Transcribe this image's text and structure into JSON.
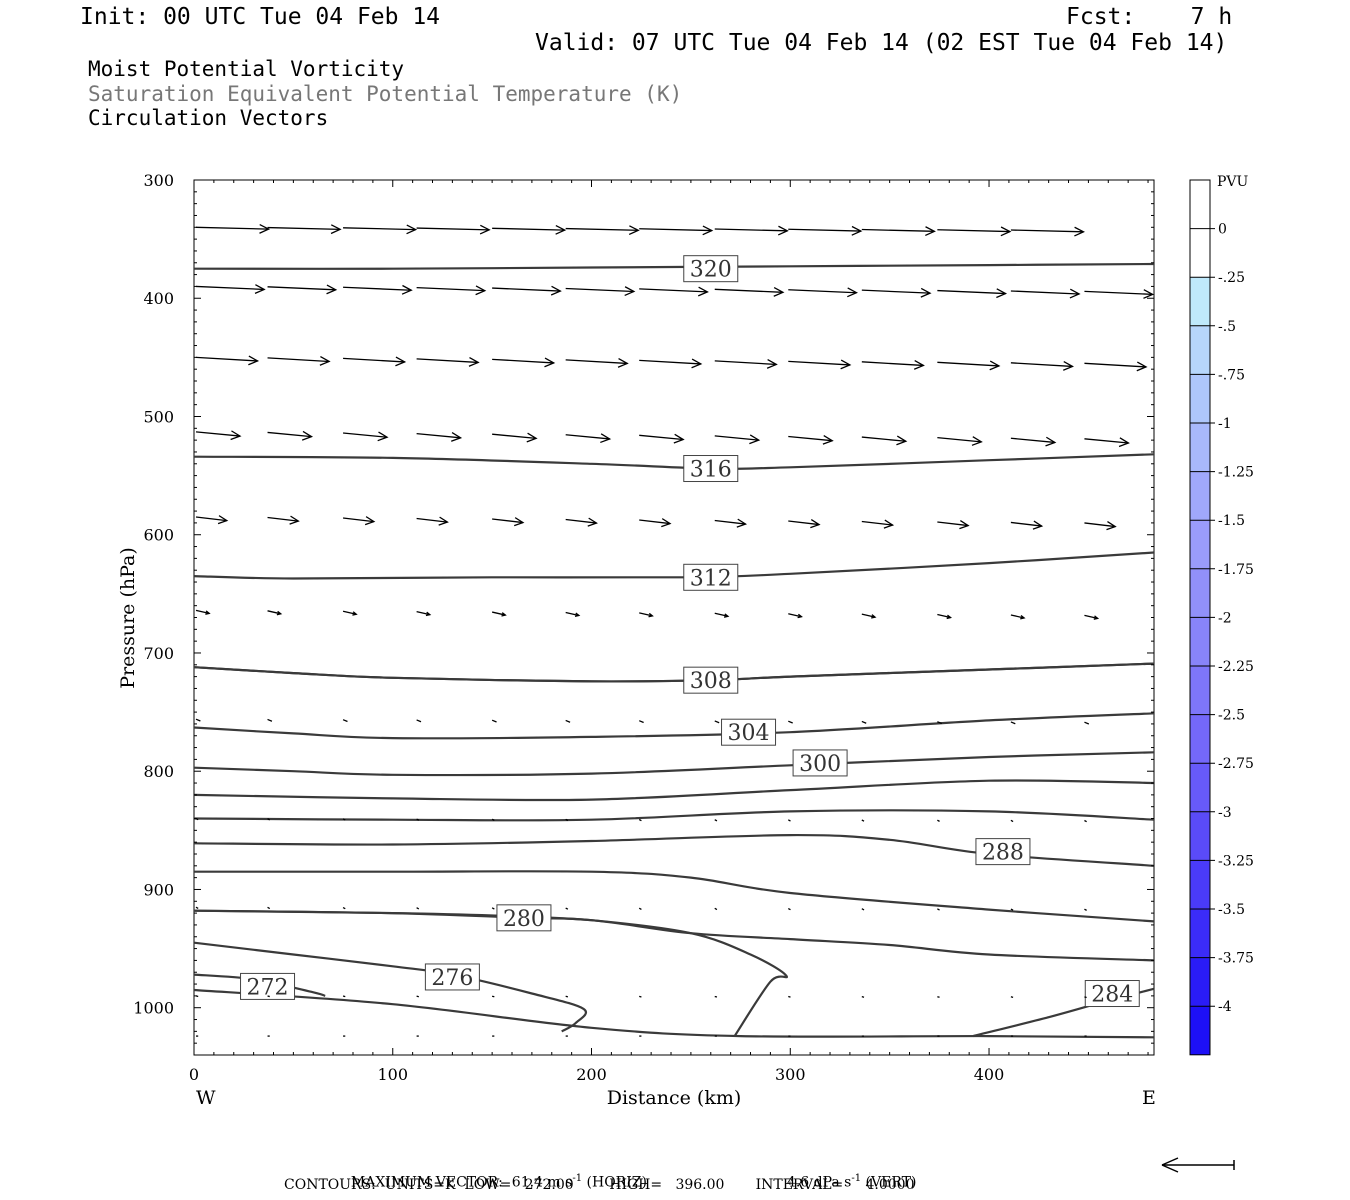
{
  "header": {
    "init": "Init: 00 UTC Tue 04 Feb 14",
    "fcst": "Fcst:    7 h",
    "valid": "Valid: 07 UTC Tue 04 Feb 14 (02 EST Tue 04 Feb 14)",
    "field1": "Moist Potential Vorticity",
    "field2": "Saturation Equivalent Potential Temperature (K)",
    "field3": "Circulation Vectors"
  },
  "chart_data": {
    "type": "contour",
    "xlabel": "Distance (km)",
    "ylabel": "Pressure (hPa)",
    "xlim": [
      0,
      483
    ],
    "ylim": [
      300,
      1040
    ],
    "x_ticks": [
      0,
      100,
      200,
      300,
      400
    ],
    "y_ticks": [
      300,
      400,
      500,
      600,
      700,
      800,
      900,
      1000
    ],
    "x_end_labels": {
      "left": "W",
      "right": "E"
    },
    "colorbar": {
      "label": "PVU",
      "ticks": [
        "0",
        "-.25",
        "-.5",
        "-.75",
        "-1",
        "-1.25",
        "-1.5",
        "-1.75",
        "-2",
        "-2.25",
        "-2.5",
        "-2.75",
        "-3",
        "-3.25",
        "-3.5",
        "-3.75",
        "-4"
      ],
      "colors": [
        "#ffffff",
        "#ffffff",
        "#bfe9fb",
        "#b7d6fb",
        "#aec6fb",
        "#a8b8fb",
        "#a0a8fb",
        "#9a9cfb",
        "#9190fa",
        "#8884fa",
        "#7e76fa",
        "#7468fa",
        "#675af9",
        "#5a4bf8",
        "#4a3bf8",
        "#3b2cf8",
        "#2a1cf7",
        "#1d10f6"
      ]
    },
    "contours": [
      {
        "label": "320",
        "points": [
          [
            0,
            375
          ],
          [
            100,
            375
          ],
          [
            200,
            374
          ],
          [
            300,
            373
          ],
          [
            400,
            372
          ],
          [
            483,
            371
          ]
        ],
        "label_at": [
          260,
          375
        ]
      },
      {
        "label": "316",
        "points": [
          [
            0,
            534
          ],
          [
            100,
            535
          ],
          [
            200,
            540
          ],
          [
            260,
            544
          ],
          [
            300,
            543
          ],
          [
            400,
            537
          ],
          [
            483,
            532
          ]
        ],
        "label_at": [
          260,
          544
        ]
      },
      {
        "label": "312",
        "points": [
          [
            0,
            635
          ],
          [
            50,
            637
          ],
          [
            150,
            636
          ],
          [
            250,
            636
          ],
          [
            300,
            633
          ],
          [
            400,
            624
          ],
          [
            483,
            615
          ]
        ],
        "label_at": [
          260,
          636
        ]
      },
      {
        "label": null,
        "points": [
          [
            0,
            712
          ],
          [
            50,
            717
          ],
          [
            100,
            721
          ],
          [
            200,
            724
          ],
          [
            260,
            723
          ],
          [
            300,
            720
          ],
          [
            400,
            714
          ],
          [
            483,
            709
          ]
        ]
      },
      {
        "label": "308",
        "points": [
          [
            0,
            712
          ],
          [
            50,
            717
          ],
          [
            100,
            721
          ],
          [
            200,
            724
          ],
          [
            260,
            723
          ],
          [
            300,
            720
          ],
          [
            400,
            714
          ],
          [
            483,
            709
          ]
        ],
        "label_at": [
          260,
          723
        ]
      },
      {
        "label": "304",
        "points": [
          [
            0,
            763
          ],
          [
            50,
            768
          ],
          [
            100,
            772
          ],
          [
            200,
            771
          ],
          [
            300,
            767
          ],
          [
            400,
            757
          ],
          [
            483,
            751
          ]
        ],
        "label_at": [
          279,
          767
        ]
      },
      {
        "label": "300",
        "points": [
          [
            0,
            797
          ],
          [
            50,
            800
          ],
          [
            100,
            803
          ],
          [
            200,
            802
          ],
          [
            300,
            795
          ],
          [
            400,
            788
          ],
          [
            483,
            784
          ]
        ],
        "label_at": [
          315,
          793
        ]
      },
      {
        "label": null,
        "points": [
          [
            0,
            820
          ],
          [
            100,
            823
          ],
          [
            200,
            824
          ],
          [
            300,
            816
          ],
          [
            400,
            808
          ],
          [
            483,
            810
          ]
        ]
      },
      {
        "label": null,
        "points": [
          [
            0,
            840
          ],
          [
            100,
            841
          ],
          [
            200,
            841
          ],
          [
            300,
            834
          ],
          [
            400,
            834
          ],
          [
            483,
            841
          ]
        ]
      },
      {
        "label": "288",
        "points": [
          [
            0,
            861
          ],
          [
            100,
            862
          ],
          [
            200,
            859
          ],
          [
            300,
            854
          ],
          [
            350,
            858
          ],
          [
            400,
            870
          ],
          [
            483,
            880
          ]
        ],
        "label_at": [
          407,
          868
        ]
      },
      {
        "label": null,
        "points": [
          [
            0,
            885
          ],
          [
            100,
            885
          ],
          [
            200,
            885
          ],
          [
            250,
            890
          ],
          [
            300,
            903
          ],
          [
            400,
            917
          ],
          [
            483,
            927
          ]
        ]
      },
      {
        "label": "284",
        "points": [
          [
            0,
            918
          ],
          [
            100,
            920
          ],
          [
            150,
            922
          ],
          [
            200,
            926
          ],
          [
            250,
            937
          ],
          [
            300,
            942
          ],
          [
            350,
            947
          ],
          [
            400,
            955
          ],
          [
            483,
            960
          ]
        ],
        "label_at": null
      },
      {
        "label": "280",
        "points": [
          [
            0,
            918
          ],
          [
            100,
            920
          ],
          [
            166,
            924
          ],
          [
            200,
            926
          ],
          [
            250,
            937
          ],
          [
            280,
            955
          ],
          [
            298,
            973
          ],
          [
            290,
            978
          ],
          [
            272,
            1024
          ]
        ],
        "label_at": [
          166,
          924
        ]
      },
      {
        "label": "276",
        "points": [
          [
            0,
            945
          ],
          [
            50,
            955
          ],
          [
            100,
            965
          ],
          [
            130,
            972
          ],
          [
            170,
            988
          ],
          [
            196,
            1001
          ],
          [
            192,
            1013
          ],
          [
            185,
            1020
          ]
        ],
        "label_at": [
          130,
          974
        ]
      },
      {
        "label": "272",
        "points": [
          [
            0,
            972
          ],
          [
            30,
            976
          ],
          [
            60,
            987
          ],
          [
            66,
            990
          ]
        ],
        "label_at": [
          37,
          982
        ]
      },
      {
        "label": null,
        "points": [
          [
            0,
            985
          ],
          [
            100,
            997
          ],
          [
            200,
            1017
          ],
          [
            275,
            1024
          ],
          [
            400,
            1024
          ],
          [
            483,
            1025
          ]
        ]
      },
      {
        "label": "284",
        "points": [
          [
            392,
            1024
          ],
          [
            430,
            1008
          ],
          [
            460,
            994
          ],
          [
            483,
            984
          ]
        ],
        "label_at": [
          462,
          988
        ]
      }
    ],
    "right_contour_284_label": "284",
    "vector_rows": [
      {
        "p": 340,
        "dp": 3,
        "dx": 33
      },
      {
        "p": 390,
        "dp": 5,
        "dx": 31
      },
      {
        "p": 450,
        "dp": 6,
        "dx": 28
      },
      {
        "p": 513,
        "dp": 7,
        "dx": 20
      },
      {
        "p": 585,
        "dp": 6,
        "dx": 14
      },
      {
        "p": 664,
        "dp": 5,
        "dx": 6
      },
      {
        "p": 756,
        "dp": 3,
        "dx": 2
      },
      {
        "p": 840,
        "dp": 2,
        "dx": 1
      },
      {
        "p": 915,
        "dp": 2,
        "dx": 1
      },
      {
        "p": 990,
        "dp": 1,
        "dx": 1
      },
      {
        "p": 1024,
        "dp": 0,
        "dx": 1
      }
    ],
    "vector_x": [
      0,
      37,
      75,
      112,
      150,
      187,
      224,
      262,
      299,
      336,
      374,
      411,
      448
    ]
  },
  "footer": {
    "max_vector": "MAXIMUM VECTOR:  61.4 m s",
    "max_vector_exp": "-1",
    "max_vector_h": " (HORIZ)",
    "max_vector_v": "4.6 dPa s",
    "max_vector_v_exp": "-1",
    "max_vector_v_tail": " (VERT)",
    "contours": "CONTOURS:  UNITS=K  LOW=   272.00        HIGH=   396.00       INTERVAL=     4.0000"
  }
}
